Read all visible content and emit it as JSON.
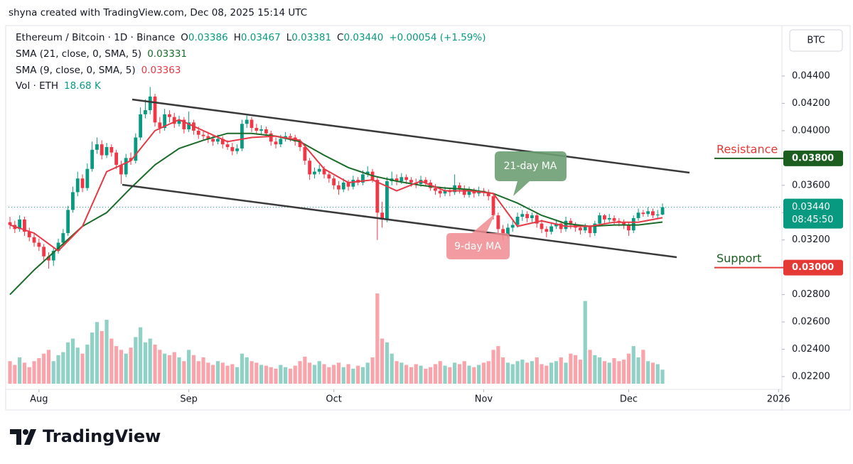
{
  "header": "shyna created with TradingView.com, Dec 08, 2025 15:14 UTC",
  "footer": {
    "brand": "TradingView"
  },
  "chart_data": {
    "type": "candlestick",
    "title": "Ethereum / Bitcoin · 1D · Binance",
    "ohlc_legend": [
      {
        "key": "O",
        "value": "0.03386"
      },
      {
        "key": "H",
        "value": "0.03467"
      },
      {
        "key": "L",
        "value": "0.03381"
      },
      {
        "key": "C",
        "value": "0.03440"
      }
    ],
    "change": "+0.00054 (+1.59%)",
    "currency": "BTC",
    "up_color": "#089981",
    "down_color": "#f23645",
    "xlim": [
      -0.3,
      159.7
    ],
    "ylim": [
      0.021,
      0.0475
    ],
    "yticks": [
      {
        "value": 0.044,
        "label": "0.04400"
      },
      {
        "value": 0.042,
        "label": "0.04200"
      },
      {
        "value": 0.04,
        "label": "0.04000"
      },
      {
        "value": 0.038,
        "label": "0.03800"
      },
      {
        "value": 0.036,
        "label": "0.03600"
      },
      {
        "value": 0.034,
        "label": "0.03400"
      },
      {
        "value": 0.032,
        "label": "0.03200"
      },
      {
        "value": 0.03,
        "label": "0.03000"
      },
      {
        "value": 0.028,
        "label": "0.02800"
      },
      {
        "value": 0.026,
        "label": "0.02600"
      },
      {
        "value": 0.024,
        "label": "0.02400"
      },
      {
        "value": 0.022,
        "label": "0.02200"
      }
    ],
    "xticks": [
      {
        "value": 6,
        "label": "Aug"
      },
      {
        "value": 37,
        "label": "Sep"
      },
      {
        "value": 67,
        "label": "Oct"
      },
      {
        "value": 98,
        "label": "Nov"
      },
      {
        "value": 128,
        "label": "Dec"
      },
      {
        "value": 159,
        "label": "2026"
      }
    ],
    "candles": [
      [
        0.0333,
        0.0337,
        0.0328,
        0.0331
      ],
      [
        0.0331,
        0.0334,
        0.0325,
        0.0328
      ],
      [
        0.0328,
        0.0338,
        0.0326,
        0.0335
      ],
      [
        0.0335,
        0.0337,
        0.0323,
        0.0326
      ],
      [
        0.0326,
        0.0329,
        0.0319,
        0.0322
      ],
      [
        0.0322,
        0.0325,
        0.0315,
        0.0318
      ],
      [
        0.0318,
        0.0321,
        0.0312,
        0.0315
      ],
      [
        0.0315,
        0.0317,
        0.0304,
        0.0308
      ],
      [
        0.0308,
        0.0311,
        0.0299,
        0.0305
      ],
      [
        0.0305,
        0.0314,
        0.0301,
        0.0312
      ],
      [
        0.0312,
        0.0321,
        0.031,
        0.0318
      ],
      [
        0.0318,
        0.0328,
        0.0316,
        0.0325
      ],
      [
        0.0325,
        0.0345,
        0.0323,
        0.0342
      ],
      [
        0.0342,
        0.0359,
        0.034,
        0.0355
      ],
      [
        0.0355,
        0.037,
        0.0352,
        0.0365
      ],
      [
        0.0365,
        0.0368,
        0.0355,
        0.0358
      ],
      [
        0.0358,
        0.0376,
        0.0356,
        0.0372
      ],
      [
        0.0372,
        0.0392,
        0.037,
        0.0386
      ],
      [
        0.0386,
        0.0395,
        0.0383,
        0.039
      ],
      [
        0.039,
        0.0393,
        0.0379,
        0.0382
      ],
      [
        0.0382,
        0.0391,
        0.038,
        0.0388
      ],
      [
        0.0388,
        0.039,
        0.0381,
        0.0384
      ],
      [
        0.0384,
        0.0386,
        0.0372,
        0.0375
      ],
      [
        0.0375,
        0.0378,
        0.0361,
        0.0368
      ],
      [
        0.0368,
        0.0383,
        0.0366,
        0.038
      ],
      [
        0.038,
        0.0384,
        0.0375,
        0.0378
      ],
      [
        0.0378,
        0.0398,
        0.0376,
        0.0395
      ],
      [
        0.0395,
        0.0417,
        0.0393,
        0.0412
      ],
      [
        0.0412,
        0.0423,
        0.0409,
        0.0415
      ],
      [
        0.0415,
        0.0432,
        0.0412,
        0.0425
      ],
      [
        0.0425,
        0.0427,
        0.0403,
        0.0406
      ],
      [
        0.0406,
        0.041,
        0.0398,
        0.0402
      ],
      [
        0.0402,
        0.0416,
        0.04,
        0.0412
      ],
      [
        0.0412,
        0.0415,
        0.0406,
        0.041
      ],
      [
        0.041,
        0.0413,
        0.0402,
        0.0405
      ],
      [
        0.0405,
        0.0411,
        0.0403,
        0.0408
      ],
      [
        0.0408,
        0.041,
        0.0398,
        0.0401
      ],
      [
        0.0401,
        0.0414,
        0.0399,
        0.0406
      ],
      [
        0.0406,
        0.0408,
        0.0397,
        0.04
      ],
      [
        0.04,
        0.0403,
        0.0394,
        0.0397
      ],
      [
        0.0397,
        0.04,
        0.0393,
        0.0396
      ],
      [
        0.0396,
        0.0399,
        0.0391,
        0.0394
      ],
      [
        0.0394,
        0.0397,
        0.0389,
        0.0392
      ],
      [
        0.0392,
        0.0397,
        0.039,
        0.0394
      ],
      [
        0.0394,
        0.0396,
        0.0387,
        0.039
      ],
      [
        0.039,
        0.0393,
        0.0386,
        0.0388
      ],
      [
        0.0388,
        0.0391,
        0.0382,
        0.0385
      ],
      [
        0.0385,
        0.039,
        0.0383,
        0.0387
      ],
      [
        0.0387,
        0.0408,
        0.0385,
        0.0405
      ],
      [
        0.0405,
        0.0411,
        0.0402,
        0.0408
      ],
      [
        0.0408,
        0.041,
        0.0399,
        0.0402
      ],
      [
        0.0402,
        0.0405,
        0.0397,
        0.04
      ],
      [
        0.04,
        0.0404,
        0.0397,
        0.0401
      ],
      [
        0.0401,
        0.0403,
        0.0395,
        0.0398
      ],
      [
        0.0398,
        0.04,
        0.0389,
        0.0392
      ],
      [
        0.0392,
        0.0395,
        0.0387,
        0.039
      ],
      [
        0.039,
        0.0397,
        0.0388,
        0.0394
      ],
      [
        0.0394,
        0.0399,
        0.0392,
        0.0396
      ],
      [
        0.0396,
        0.0398,
        0.0392,
        0.0395
      ],
      [
        0.0395,
        0.0397,
        0.0389,
        0.0392
      ],
      [
        0.0392,
        0.0394,
        0.0385,
        0.0388
      ],
      [
        0.0388,
        0.039,
        0.0375,
        0.0378
      ],
      [
        0.0378,
        0.038,
        0.0364,
        0.0368
      ],
      [
        0.0368,
        0.0373,
        0.0365,
        0.037
      ],
      [
        0.037,
        0.0375,
        0.0368,
        0.0372
      ],
      [
        0.0372,
        0.0374,
        0.0365,
        0.0368
      ],
      [
        0.0368,
        0.037,
        0.0362,
        0.0365
      ],
      [
        0.0365,
        0.0367,
        0.0357,
        0.036
      ],
      [
        0.036,
        0.0363,
        0.0353,
        0.0357
      ],
      [
        0.0357,
        0.0365,
        0.0355,
        0.0362
      ],
      [
        0.0362,
        0.0364,
        0.0356,
        0.0359
      ],
      [
        0.0359,
        0.0367,
        0.0357,
        0.0364
      ],
      [
        0.0364,
        0.0366,
        0.036,
        0.0362
      ],
      [
        0.0362,
        0.0371,
        0.036,
        0.0368
      ],
      [
        0.0368,
        0.0374,
        0.0366,
        0.037
      ],
      [
        0.037,
        0.0372,
        0.0362,
        0.0364
      ],
      [
        0.0364,
        0.0366,
        0.032,
        0.034
      ],
      [
        0.034,
        0.0348,
        0.0329,
        0.0335
      ],
      [
        0.0335,
        0.0366,
        0.0333,
        0.0363
      ],
      [
        0.0363,
        0.037,
        0.036,
        0.0365
      ],
      [
        0.0365,
        0.0368,
        0.036,
        0.0363
      ],
      [
        0.0363,
        0.0369,
        0.0361,
        0.0366
      ],
      [
        0.0366,
        0.0368,
        0.0361,
        0.0364
      ],
      [
        0.0364,
        0.0366,
        0.0359,
        0.0362
      ],
      [
        0.0362,
        0.0365,
        0.0358,
        0.0361
      ],
      [
        0.0361,
        0.0367,
        0.0359,
        0.0364
      ],
      [
        0.0364,
        0.0366,
        0.0359,
        0.0362
      ],
      [
        0.0362,
        0.0364,
        0.0356,
        0.0358
      ],
      [
        0.0358,
        0.0361,
        0.0353,
        0.0356
      ],
      [
        0.0356,
        0.0359,
        0.0351,
        0.0354
      ],
      [
        0.0354,
        0.0359,
        0.0352,
        0.0356
      ],
      [
        0.0356,
        0.0358,
        0.0352,
        0.0355
      ],
      [
        0.0355,
        0.0368,
        0.0353,
        0.036
      ],
      [
        0.036,
        0.0362,
        0.0354,
        0.0357
      ],
      [
        0.0357,
        0.036,
        0.0351,
        0.0353
      ],
      [
        0.0353,
        0.0359,
        0.0351,
        0.0356
      ],
      [
        0.0356,
        0.0358,
        0.0351,
        0.0354
      ],
      [
        0.0354,
        0.0359,
        0.0352,
        0.0356
      ],
      [
        0.0356,
        0.0358,
        0.0352,
        0.0355
      ],
      [
        0.0355,
        0.0357,
        0.0349,
        0.0352
      ],
      [
        0.0352,
        0.0354,
        0.0335,
        0.0338
      ],
      [
        0.0338,
        0.034,
        0.0324,
        0.0328
      ],
      [
        0.0328,
        0.0331,
        0.032,
        0.0324
      ],
      [
        0.0324,
        0.0332,
        0.0321,
        0.0329
      ],
      [
        0.0329,
        0.0334,
        0.0326,
        0.0331
      ],
      [
        0.0331,
        0.034,
        0.0329,
        0.0337
      ],
      [
        0.0337,
        0.0342,
        0.0334,
        0.0339
      ],
      [
        0.0339,
        0.0341,
        0.0333,
        0.0336
      ],
      [
        0.0336,
        0.034,
        0.0333,
        0.0338
      ],
      [
        0.0338,
        0.034,
        0.0329,
        0.0332
      ],
      [
        0.0332,
        0.0335,
        0.0325,
        0.0328
      ],
      [
        0.0328,
        0.033,
        0.0322,
        0.0326
      ],
      [
        0.0326,
        0.0333,
        0.0324,
        0.033
      ],
      [
        0.033,
        0.0335,
        0.0328,
        0.0332
      ],
      [
        0.0332,
        0.0334,
        0.0325,
        0.0328
      ],
      [
        0.0328,
        0.0337,
        0.0326,
        0.0334
      ],
      [
        0.0334,
        0.0336,
        0.0328,
        0.0331
      ],
      [
        0.0331,
        0.0333,
        0.0326,
        0.0329
      ],
      [
        0.0329,
        0.0331,
        0.0324,
        0.0327
      ],
      [
        0.0327,
        0.0332,
        0.0325,
        0.033
      ],
      [
        0.033,
        0.0331,
        0.0322,
        0.0325
      ],
      [
        0.0325,
        0.0334,
        0.0323,
        0.0332
      ],
      [
        0.0332,
        0.034,
        0.033,
        0.0338
      ],
      [
        0.0338,
        0.0339,
        0.0332,
        0.0335
      ],
      [
        0.0335,
        0.0339,
        0.0333,
        0.0336
      ],
      [
        0.0336,
        0.0338,
        0.0331,
        0.0334
      ],
      [
        0.0334,
        0.0336,
        0.033,
        0.0333
      ],
      [
        0.0333,
        0.0335,
        0.0328,
        0.0331
      ],
      [
        0.0331,
        0.0333,
        0.0323,
        0.0327
      ],
      [
        0.0327,
        0.0338,
        0.0325,
        0.0336
      ],
      [
        0.0336,
        0.0343,
        0.0334,
        0.034
      ],
      [
        0.034,
        0.0342,
        0.0337,
        0.0339
      ],
      [
        0.0339,
        0.0344,
        0.0337,
        0.0341
      ],
      [
        0.0341,
        0.0343,
        0.0336,
        0.0338
      ],
      [
        0.0338,
        0.0342,
        0.0336,
        0.03386
      ],
      [
        0.03386,
        0.03467,
        0.03381,
        0.0344
      ]
    ],
    "volume": {
      "name": "Vol · ETH",
      "value_label": "18.68 K",
      "values": [
        30,
        25,
        35,
        28,
        22,
        30,
        34,
        40,
        45,
        30,
        38,
        42,
        55,
        60,
        48,
        40,
        52,
        68,
        82,
        70,
        85,
        60,
        50,
        45,
        40,
        48,
        62,
        75,
        55,
        60,
        52,
        45,
        40,
        38,
        42,
        35,
        30,
        45,
        38,
        30,
        35,
        28,
        25,
        30,
        28,
        24,
        26,
        22,
        40,
        35,
        30,
        28,
        25,
        24,
        22,
        20,
        25,
        22,
        20,
        24,
        30,
        36,
        28,
        25,
        30,
        26,
        22,
        25,
        28,
        22,
        26,
        20,
        24,
        22,
        28,
        35,
        120,
        60,
        55,
        40,
        30,
        28,
        25,
        22,
        26,
        24,
        20,
        22,
        26,
        30,
        24,
        22,
        28,
        26,
        30,
        24,
        22,
        25,
        28,
        30,
        45,
        50,
        35,
        28,
        26,
        30,
        32,
        28,
        30,
        35,
        26,
        24,
        28,
        30,
        35,
        28,
        40,
        38,
        32,
        110,
        45,
        38,
        35,
        30,
        28,
        34,
        30,
        32,
        40,
        50,
        35,
        45,
        30,
        28,
        26,
        18.68
      ]
    },
    "series": [
      {
        "name": "SMA (21, close, 0, SMA, 5)",
        "legend_value": "0.03331",
        "color": "#1b6b2a",
        "x": [
          0,
          5,
          10,
          15,
          20,
          25,
          30,
          35,
          40,
          45,
          50,
          55,
          60,
          65,
          70,
          75,
          80,
          85,
          90,
          95,
          100,
          105,
          110,
          115,
          120,
          125,
          130,
          135
        ],
        "values": [
          0.028,
          0.0298,
          0.0314,
          0.033,
          0.034,
          0.0358,
          0.0375,
          0.0387,
          0.0393,
          0.0398,
          0.0398,
          0.0396,
          0.0392,
          0.0382,
          0.0373,
          0.0367,
          0.0363,
          0.036,
          0.0358,
          0.0357,
          0.0354,
          0.0347,
          0.0338,
          0.0332,
          0.033,
          0.0331,
          0.0331,
          0.03331
        ]
      },
      {
        "name": "SMA (9, close, 0, SMA, 5)",
        "legend_value": "0.03363",
        "color": "#e53945",
        "x": [
          0,
          5,
          10,
          15,
          20,
          25,
          30,
          35,
          40,
          45,
          50,
          55,
          60,
          65,
          70,
          75,
          80,
          85,
          90,
          95,
          100,
          105,
          110,
          115,
          120,
          125,
          130,
          135
        ],
        "values": [
          0.0331,
          0.0325,
          0.0312,
          0.033,
          0.037,
          0.0378,
          0.04,
          0.0408,
          0.04,
          0.0392,
          0.0395,
          0.0396,
          0.0393,
          0.0372,
          0.0362,
          0.0364,
          0.0356,
          0.0363,
          0.0356,
          0.0356,
          0.0354,
          0.033,
          0.0334,
          0.033,
          0.033,
          0.0333,
          0.0333,
          0.03363
        ]
      }
    ],
    "levels": [
      {
        "name": "Resistance",
        "value": 0.038,
        "label": "0.03800",
        "color": "#1b5e20",
        "text_color": "#e53935"
      },
      {
        "name": "Support",
        "value": 0.03,
        "label": "0.03000",
        "color": "#e53935",
        "text_color": "#1b5e20"
      }
    ],
    "last_price": {
      "value": 0.0344,
      "label": "0.03440",
      "countdown": "08:45:50"
    },
    "annotations": [
      "21-day MA",
      "9-day MA"
    ]
  }
}
